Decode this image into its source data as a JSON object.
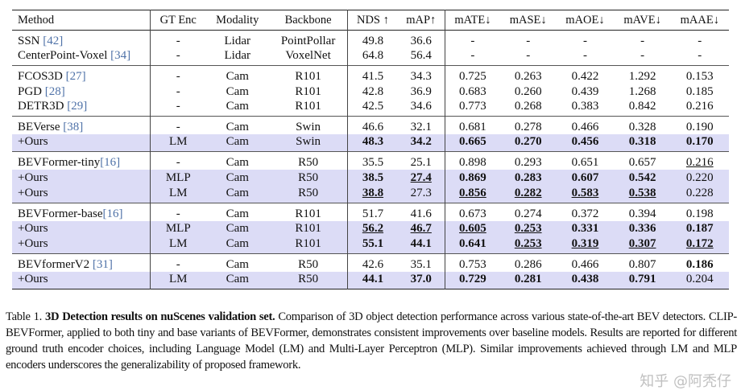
{
  "table": {
    "headers": [
      "Method",
      "GT Enc",
      "Modality",
      "Backbone",
      "NDS ↑",
      "mAP↑",
      "mATE↓",
      "mASE↓",
      "mAOE↓",
      "mAVE↓",
      "mAAE↓"
    ],
    "groups": [
      {
        "rows": [
          {
            "method": "SSN ",
            "ref": "[42]",
            "gt": "-",
            "modality": "Lidar",
            "backbone": "PointPollar",
            "hl": false,
            "cells": [
              {
                "v": "49.8"
              },
              {
                "v": "36.6"
              },
              {
                "v": "-"
              },
              {
                "v": "-"
              },
              {
                "v": "-"
              },
              {
                "v": "-"
              },
              {
                "v": "-"
              }
            ]
          },
          {
            "method": "CenterPoint-Voxel ",
            "ref": "[34]",
            "gt": "-",
            "modality": "Lidar",
            "backbone": "VoxelNet",
            "hl": false,
            "cells": [
              {
                "v": "64.8"
              },
              {
                "v": "56.4"
              },
              {
                "v": "-"
              },
              {
                "v": "-"
              },
              {
                "v": "-"
              },
              {
                "v": "-"
              },
              {
                "v": "-"
              }
            ]
          }
        ]
      },
      {
        "rows": [
          {
            "method": "FCOS3D ",
            "ref": "[27]",
            "gt": "-",
            "modality": "Cam",
            "backbone": "R101",
            "hl": false,
            "cells": [
              {
                "v": "41.5"
              },
              {
                "v": "34.3"
              },
              {
                "v": "0.725"
              },
              {
                "v": "0.263"
              },
              {
                "v": "0.422"
              },
              {
                "v": "1.292"
              },
              {
                "v": "0.153"
              }
            ]
          },
          {
            "method": "PGD ",
            "ref": "[28]",
            "gt": "-",
            "modality": "Cam",
            "backbone": "R101",
            "hl": false,
            "cells": [
              {
                "v": "42.8"
              },
              {
                "v": "36.9"
              },
              {
                "v": "0.683"
              },
              {
                "v": "0.260"
              },
              {
                "v": "0.439"
              },
              {
                "v": "1.268"
              },
              {
                "v": "0.185"
              }
            ]
          },
          {
            "method": "DETR3D ",
            "ref": "[29]",
            "gt": "-",
            "modality": "Cam",
            "backbone": "R101",
            "hl": false,
            "cells": [
              {
                "v": "42.5"
              },
              {
                "v": "34.6"
              },
              {
                "v": "0.773"
              },
              {
                "v": "0.268"
              },
              {
                "v": "0.383"
              },
              {
                "v": "0.842"
              },
              {
                "v": "0.216"
              }
            ]
          }
        ]
      },
      {
        "rows": [
          {
            "method": "BEVerse ",
            "ref": "[38]",
            "gt": "-",
            "modality": "Cam",
            "backbone": "Swin",
            "hl": false,
            "cells": [
              {
                "v": "46.6"
              },
              {
                "v": "32.1"
              },
              {
                "v": "0.681"
              },
              {
                "v": "0.278"
              },
              {
                "v": "0.466"
              },
              {
                "v": "0.328"
              },
              {
                "v": "0.190"
              }
            ]
          },
          {
            "method": "+Ours",
            "ref": "",
            "gt": "LM",
            "modality": "Cam",
            "backbone": "Swin",
            "hl": true,
            "cells": [
              {
                "v": "48.3",
                "b": true
              },
              {
                "v": "34.2",
                "b": true
              },
              {
                "v": "0.665",
                "b": true
              },
              {
                "v": "0.270",
                "b": true
              },
              {
                "v": "0.456",
                "b": true
              },
              {
                "v": "0.318",
                "b": true
              },
              {
                "v": "0.170",
                "b": true
              }
            ]
          }
        ]
      },
      {
        "rows": [
          {
            "method": "BEVFormer-tiny",
            "ref": "[16]",
            "gt": "-",
            "modality": "Cam",
            "backbone": "R50",
            "hl": false,
            "cells": [
              {
                "v": "35.5"
              },
              {
                "v": "25.1"
              },
              {
                "v": "0.898"
              },
              {
                "v": "0.293"
              },
              {
                "v": "0.651"
              },
              {
                "v": "0.657"
              },
              {
                "v": "0.216",
                "u": true
              }
            ]
          },
          {
            "method": "+Ours",
            "ref": "",
            "gt": "MLP",
            "modality": "Cam",
            "backbone": "R50",
            "hl": true,
            "cells": [
              {
                "v": "38.5",
                "b": true
              },
              {
                "v": "27.4",
                "b": true,
                "u": true
              },
              {
                "v": "0.869",
                "b": true
              },
              {
                "v": "0.283",
                "b": true
              },
              {
                "v": "0.607",
                "b": true
              },
              {
                "v": "0.542",
                "b": true
              },
              {
                "v": "0.220"
              }
            ]
          },
          {
            "method": "+Ours",
            "ref": "",
            "gt": "LM",
            "modality": "Cam",
            "backbone": "R50",
            "hl": true,
            "cells": [
              {
                "v": "38.8",
                "b": true,
                "u": true
              },
              {
                "v": "27.3"
              },
              {
                "v": "0.856",
                "b": true,
                "u": true
              },
              {
                "v": "0.282",
                "b": true,
                "u": true
              },
              {
                "v": "0.583",
                "b": true,
                "u": true
              },
              {
                "v": "0.538",
                "b": true,
                "u": true
              },
              {
                "v": "0.228"
              }
            ]
          }
        ]
      },
      {
        "rows": [
          {
            "method": "BEVFormer-base",
            "ref": "[16]",
            "gt": "-",
            "modality": "Cam",
            "backbone": "R101",
            "hl": false,
            "cells": [
              {
                "v": "51.7"
              },
              {
                "v": "41.6"
              },
              {
                "v": "0.673"
              },
              {
                "v": "0.274"
              },
              {
                "v": "0.372"
              },
              {
                "v": "0.394"
              },
              {
                "v": "0.198"
              }
            ]
          },
          {
            "method": "+Ours",
            "ref": "",
            "gt": "MLP",
            "modality": "Cam",
            "backbone": "R101",
            "hl": true,
            "cells": [
              {
                "v": "56.2",
                "b": true,
                "u": true
              },
              {
                "v": "46.7",
                "b": true,
                "u": true
              },
              {
                "v": "0.605",
                "b": true,
                "u": true
              },
              {
                "v": "0.253",
                "b": true,
                "u": true
              },
              {
                "v": "0.331",
                "b": true
              },
              {
                "v": "0.336",
                "b": true
              },
              {
                "v": "0.187",
                "b": true
              }
            ]
          },
          {
            "method": "+Ours",
            "ref": "",
            "gt": "LM",
            "modality": "Cam",
            "backbone": "R101",
            "hl": true,
            "cells": [
              {
                "v": "55.1",
                "b": true
              },
              {
                "v": "44.1",
                "b": true
              },
              {
                "v": "0.641",
                "b": true
              },
              {
                "v": "0.253",
                "b": true,
                "u": true
              },
              {
                "v": "0.319",
                "b": true,
                "u": true
              },
              {
                "v": "0.307",
                "b": true,
                "u": true
              },
              {
                "v": "0.172",
                "b": true,
                "u": true
              }
            ]
          }
        ]
      },
      {
        "rows": [
          {
            "method": "BEVformerV2 ",
            "ref": "[31]",
            "gt": "-",
            "modality": "Cam",
            "backbone": "R50",
            "hl": false,
            "cells": [
              {
                "v": "42.6"
              },
              {
                "v": "35.1"
              },
              {
                "v": "0.753"
              },
              {
                "v": "0.286"
              },
              {
                "v": "0.466"
              },
              {
                "v": "0.807"
              },
              {
                "v": "0.186",
                "b": true
              }
            ]
          },
          {
            "method": "+Ours",
            "ref": "",
            "gt": "LM",
            "modality": "Cam",
            "backbone": "R50",
            "hl": true,
            "cells": [
              {
                "v": "44.1",
                "b": true
              },
              {
                "v": "37.0",
                "b": true
              },
              {
                "v": "0.729",
                "b": true
              },
              {
                "v": "0.281",
                "b": true
              },
              {
                "v": "0.438",
                "b": true
              },
              {
                "v": "0.791",
                "b": true
              },
              {
                "v": "0.204"
              }
            ]
          }
        ]
      }
    ]
  },
  "caption": {
    "label": "Table 1. ",
    "lead": "3D Detection results on nuScenes validation set.",
    "body": " Comparison of 3D object detection performance across various state-of-the-art BEV detectors. CLIP-BEVFormer, applied to both tiny and base variants of BEVFormer, demonstrates consistent improvements over baseline models. Results are reported for different ground truth encoder choices, including Language Model (LM) and Multi-Layer Perceptron (MLP). Similar improvements achieved through LM and MLP encoders underscores the generalizability of proposed framework."
  },
  "watermark": "知乎 @阿秃仔",
  "colors": {
    "highlight": "#dcdcf6",
    "citation": "#4f72a8"
  }
}
